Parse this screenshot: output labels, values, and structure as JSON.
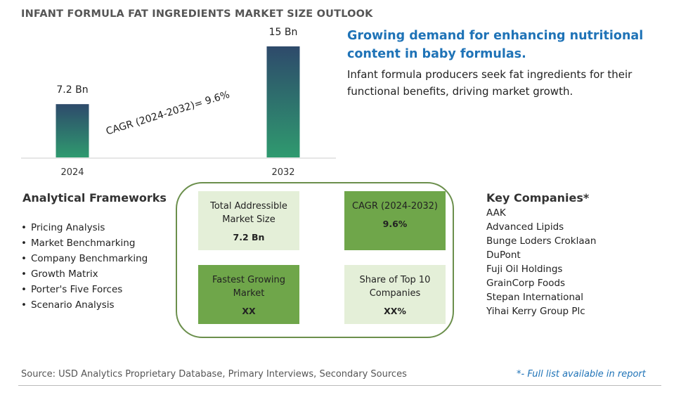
{
  "title": "INFANT FORMULA FAT INGREDIENTS MARKET SIZE OUTLOOK",
  "chart_data": {
    "type": "bar",
    "categories": [
      "2024",
      "2032"
    ],
    "values": [
      7.2,
      15
    ],
    "value_labels": [
      "7.2 Bn",
      "15 Bn"
    ],
    "annotation": "CAGR (2024-2032)=  9.6%",
    "ylim": [
      0,
      15
    ],
    "bar_gradient": [
      "#2e4a6b",
      "#2f9a6f"
    ]
  },
  "headline": "Growing demand for enhancing nutritional content in baby formulas.",
  "subtext": "Infant formula producers seek fat ingredients for their functional benefits, driving market growth.",
  "frameworks": {
    "title": "Analytical Frameworks",
    "items": [
      "Pricing Analysis",
      "Market Benchmarking",
      "Company Benchmarking",
      "Growth Matrix",
      "Porter's Five Forces",
      "Scenario Analysis"
    ]
  },
  "metrics": {
    "tam": {
      "label": "Total Addressible Market Size",
      "value": "7.2 Bn"
    },
    "cagr": {
      "label": "CAGR (2024-2032)",
      "value": "9.6%"
    },
    "fastest": {
      "label": "Fastest Growing Market",
      "value": "XX"
    },
    "share": {
      "label": "Share of Top 10 Companies",
      "value": "XX%"
    }
  },
  "companies": {
    "title": "Key Companies*",
    "items": [
      "AAK",
      "Advanced Lipids",
      "Bunge Loders Croklaan",
      "DuPont",
      "Fuji Oil Holdings",
      "GrainCorp Foods",
      "Stepan International",
      "Yihai Kerry Group Plc"
    ]
  },
  "footer": {
    "source": "Source: USD Analytics Proprietary Database, Primary Interviews, Secondary Sources",
    "note": "*- Full list available in report"
  }
}
